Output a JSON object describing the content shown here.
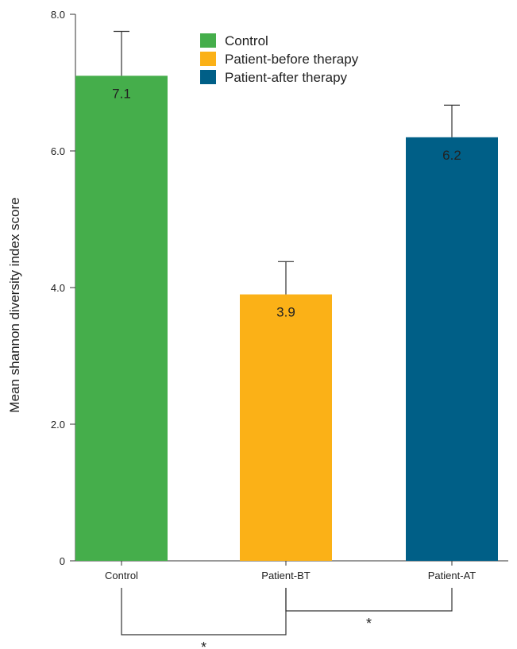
{
  "chart_data": {
    "type": "bar",
    "categories": [
      "Control",
      "Patient-BT",
      "Patient-AT"
    ],
    "values": [
      7.1,
      3.9,
      6.2
    ],
    "errors": [
      0.65,
      0.48,
      0.47
    ],
    "value_labels": [
      "7.1",
      "3.9",
      "6.2"
    ],
    "colors": [
      "#45ae4b",
      "#fbb117",
      "#005f87"
    ],
    "ylabel": "Mean shannon diversity index score",
    "xlabel": "",
    "ylim": [
      0,
      8
    ],
    "yticks": [
      0,
      2,
      4,
      6,
      8
    ],
    "ytick_labels": [
      "0",
      "2.0",
      "4.0",
      "6.0",
      "8.0"
    ],
    "grid": false,
    "legend": {
      "placement": "top-center",
      "entries": [
        {
          "name": "Control",
          "color": "#45ae4b"
        },
        {
          "name": "Patient-before therapy",
          "color": "#fbb117"
        },
        {
          "name": "Patient-after therapy",
          "color": "#005f87"
        }
      ]
    },
    "significance": [
      {
        "from": "Patient-BT",
        "to": "Patient-AT",
        "label": "*"
      },
      {
        "from": "Control",
        "to": "Patient-BT",
        "label": "*"
      }
    ]
  }
}
